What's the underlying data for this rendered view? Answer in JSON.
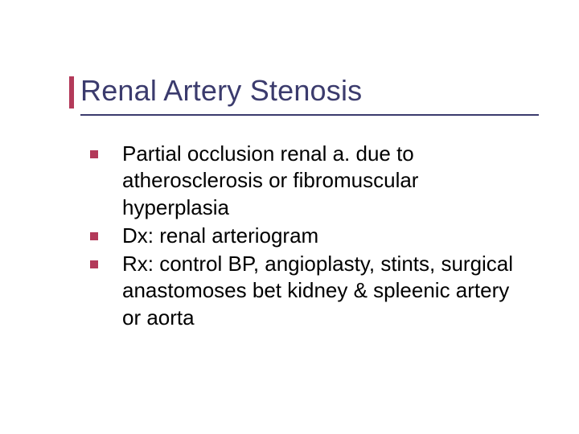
{
  "slide": {
    "title": "Renal Artery Stenosis",
    "bullets": [
      "Partial occlusion renal a. due to atherosclerosis or fibromuscular hyperplasia",
      "Dx: renal arteriogram",
      "Rx: control BP, angioplasty, stints, surgical anastomoses bet kidney & spleenic artery or aorta"
    ]
  },
  "style": {
    "title_color": "#3b3b6d",
    "title_fontsize": 36,
    "underline_color": "#3b3b6d",
    "accent_color": "#b33a5a",
    "bullet_marker_color": "#b33a5a",
    "bullet_marker_size": 10,
    "body_text_color": "#000000",
    "body_fontsize": 26,
    "background_color": "#ffffff"
  }
}
